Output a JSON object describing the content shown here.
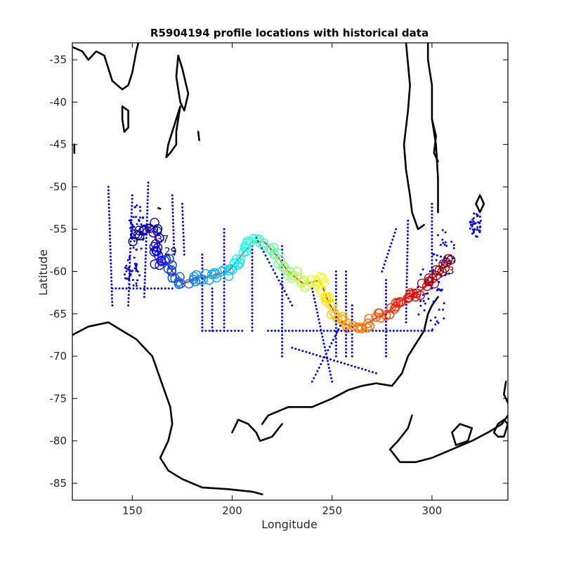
{
  "chart_data": {
    "type": "scatter",
    "title": "R5904194 profile locations with historical data",
    "xlabel": "Longitude",
    "ylabel": "Latitude",
    "xlim": [
      120,
      338
    ],
    "ylim": [
      -87,
      -33
    ],
    "xticks": [
      150,
      200,
      250,
      300
    ],
    "yticks": [
      -35,
      -40,
      -45,
      -50,
      -55,
      -60,
      -65,
      -70,
      -75,
      -80,
      -85
    ],
    "grid": false,
    "profile_labels": [
      "36",
      "37",
      "29",
      "3"
    ],
    "track": [
      [
        152,
        -56.5
      ],
      [
        154,
        -55.5
      ],
      [
        156,
        -55.0
      ],
      [
        158,
        -54.8
      ],
      [
        160,
        -54.6
      ],
      [
        162,
        -56.0
      ],
      [
        163,
        -58.5
      ],
      [
        164,
        -59.0
      ],
      [
        166,
        -58.5
      ],
      [
        170,
        -60.0
      ],
      [
        175,
        -61.5
      ],
      [
        182,
        -60.8
      ],
      [
        190,
        -60.5
      ],
      [
        198,
        -60.0
      ],
      [
        205,
        -58.0
      ],
      [
        210,
        -56.5
      ],
      [
        216,
        -56.5
      ],
      [
        222,
        -58.0
      ],
      [
        228,
        -60.0
      ],
      [
        236,
        -61.5
      ],
      [
        244,
        -61.0
      ],
      [
        248,
        -63.5
      ],
      [
        254,
        -66.0
      ],
      [
        260,
        -66.5
      ],
      [
        266,
        -66.3
      ],
      [
        272,
        -65.5
      ],
      [
        278,
        -64.8
      ],
      [
        284,
        -63.5
      ],
      [
        290,
        -62.8
      ],
      [
        296,
        -62.0
      ],
      [
        302,
        -60.5
      ],
      [
        306,
        -59.5
      ],
      [
        310,
        -58.8
      ]
    ],
    "historical_lines": [
      {
        "x": [
          138,
          140
        ],
        "y": [
          -50,
          -64
        ]
      },
      {
        "x": [
          150,
          148
        ],
        "y": [
          -51,
          -64
        ]
      },
      {
        "x": [
          158,
          156
        ],
        "y": [
          -49.5,
          -63
        ]
      },
      {
        "x": [
          170,
          171
        ],
        "y": [
          -51,
          -58
        ]
      },
      {
        "x": [
          175,
          176
        ],
        "y": [
          -52,
          -58
        ]
      },
      {
        "x": [
          185,
          185
        ],
        "y": [
          -58,
          -67
        ]
      },
      {
        "x": [
          190,
          190
        ],
        "y": [
          -62,
          -67
        ]
      },
      {
        "x": [
          196,
          196
        ],
        "y": [
          -55,
          -67
        ]
      },
      {
        "x": [
          210,
          210
        ],
        "y": [
          -57,
          -67
        ]
      },
      {
        "x": [
          225,
          225
        ],
        "y": [
          -57,
          -70
        ]
      },
      {
        "x": [
          252,
          252
        ],
        "y": [
          -60,
          -70
        ]
      },
      {
        "x": [
          257,
          257
        ],
        "y": [
          -60,
          -70
        ]
      },
      {
        "x": [
          260,
          260
        ],
        "y": [
          -64,
          -70
        ]
      },
      {
        "x": [
          277,
          277
        ],
        "y": [
          -61,
          -70
        ]
      },
      {
        "x": [
          288,
          287
        ],
        "y": [
          -54,
          -66
        ]
      },
      {
        "x": [
          300,
          300
        ],
        "y": [
          -52,
          -62
        ]
      },
      {
        "x": [
          212,
          230
        ],
        "y": [
          -56,
          -64
        ]
      },
      {
        "x": [
          240,
          250
        ],
        "y": [
          -62,
          -73
        ]
      },
      {
        "x": [
          255,
          240
        ],
        "y": [
          -66,
          -73
        ]
      },
      {
        "x": [
          140,
          170
        ],
        "y": [
          -62,
          -62
        ]
      },
      {
        "x": [
          185,
          205
        ],
        "y": [
          -67,
          -67
        ]
      },
      {
        "x": [
          218,
          300
        ],
        "y": [
          -67,
          -67
        ]
      },
      {
        "x": [
          230,
          272
        ],
        "y": [
          -69,
          -72
        ]
      },
      {
        "x": [
          275,
          282
        ],
        "y": [
          -60,
          -55
        ]
      }
    ],
    "historical_clusters": [
      {
        "x": 152,
        "y": -55,
        "rx": 4,
        "ry": 3
      },
      {
        "x": 306,
        "y": -59,
        "rx": 6,
        "ry": 4
      },
      {
        "x": 322,
        "y": -54.5,
        "rx": 3,
        "ry": 1.5
      },
      {
        "x": 300,
        "y": -63,
        "rx": 8,
        "ry": 4
      },
      {
        "x": 150,
        "y": -60,
        "rx": 4,
        "ry": 2
      }
    ],
    "coastlines": [
      [
        [
          120,
          -67.5
        ],
        [
          128,
          -66.5
        ],
        [
          138,
          -66
        ],
        [
          145,
          -67
        ],
        [
          152,
          -68
        ],
        [
          160,
          -70
        ],
        [
          163,
          -72
        ],
        [
          166,
          -74
        ],
        [
          169,
          -76
        ],
        [
          170,
          -78
        ],
        [
          168,
          -80
        ],
        [
          164,
          -82
        ],
        [
          168,
          -83.5
        ],
        [
          175,
          -84.5
        ],
        [
          185,
          -85.5
        ],
        [
          198,
          -85.7
        ],
        [
          210,
          -86
        ],
        [
          215,
          -86.3
        ]
      ],
      [
        [
          215,
          -78
        ],
        [
          218,
          -77
        ],
        [
          223,
          -76.5
        ],
        [
          228,
          -76
        ],
        [
          240,
          -76
        ],
        [
          250,
          -75
        ],
        [
          258,
          -74
        ],
        [
          265,
          -73.5
        ],
        [
          272,
          -73.2
        ],
        [
          280,
          -73.5
        ],
        [
          285,
          -72
        ],
        [
          288,
          -70
        ],
        [
          292,
          -68.5
        ],
        [
          296,
          -67
        ],
        [
          298,
          -65
        ],
        [
          300,
          -64
        ],
        [
          303,
          -63
        ]
      ],
      [
        [
          200,
          -79
        ],
        [
          203,
          -77.5
        ],
        [
          208,
          -78
        ],
        [
          212,
          -79
        ],
        [
          214,
          -80
        ],
        [
          220,
          -79.5
        ],
        [
          225,
          -78
        ]
      ],
      [
        [
          290,
          -77
        ],
        [
          288,
          -78.5
        ],
        [
          283,
          -80
        ],
        [
          279,
          -81
        ],
        [
          284,
          -82.5
        ],
        [
          292,
          -82.5
        ],
        [
          300,
          -82
        ],
        [
          310,
          -81
        ],
        [
          320,
          -80
        ],
        [
          328,
          -79
        ],
        [
          335,
          -78
        ],
        [
          338,
          -77
        ]
      ],
      [
        [
          310,
          -79
        ],
        [
          314,
          -78
        ],
        [
          320,
          -78.5
        ],
        [
          318,
          -80
        ],
        [
          312,
          -80.5
        ],
        [
          310,
          -79
        ]
      ],
      [
        [
          331,
          -79
        ],
        [
          333,
          -78
        ],
        [
          336,
          -77.5
        ],
        [
          338,
          -78
        ],
        [
          336,
          -79.5
        ],
        [
          333,
          -79.5
        ],
        [
          331,
          -79
        ]
      ],
      [
        [
          338,
          -75.5
        ],
        [
          336,
          -74.5
        ],
        [
          337,
          -73
        ]
      ],
      [
        [
          303,
          -53
        ],
        [
          303,
          -49
        ],
        [
          302,
          -45
        ],
        [
          300,
          -42
        ],
        [
          300,
          -38
        ],
        [
          298,
          -35
        ],
        [
          298,
          -33
        ]
      ],
      [
        [
          287,
          -33
        ],
        [
          289,
          -38
        ],
        [
          288,
          -41
        ],
        [
          286,
          -45
        ],
        [
          287,
          -48
        ],
        [
          289,
          -51
        ],
        [
          290,
          -53
        ],
        [
          293,
          -55
        ],
        [
          296,
          -54.5
        ]
      ],
      [
        [
          300,
          -42
        ],
        [
          302,
          -44
        ],
        [
          301,
          -46
        ],
        [
          303,
          -47
        ]
      ],
      [
        [
          322,
          -52
        ],
        [
          324,
          -51
        ],
        [
          326,
          -52
        ],
        [
          324,
          -53
        ],
        [
          322,
          -52
        ]
      ],
      [
        [
          173,
          -34.5
        ],
        [
          175,
          -36
        ],
        [
          177,
          -38
        ],
        [
          178,
          -39
        ],
        [
          176,
          -41
        ],
        [
          174,
          -40
        ],
        [
          172,
          -37
        ],
        [
          173,
          -34.5
        ]
      ],
      [
        [
          174,
          -40.5
        ],
        [
          173,
          -42
        ],
        [
          172,
          -43.5
        ],
        [
          172,
          -45
        ],
        [
          169,
          -46
        ],
        [
          167,
          -46.5
        ],
        [
          168,
          -45
        ],
        [
          170,
          -43.5
        ],
        [
          172,
          -42
        ],
        [
          174,
          -40.5
        ]
      ],
      [
        [
          120,
          -33.5
        ],
        [
          125,
          -34
        ],
        [
          128,
          -35
        ],
        [
          132,
          -34
        ],
        [
          136,
          -34.5
        ],
        [
          140,
          -37.5
        ],
        [
          145,
          -38.5
        ],
        [
          148,
          -38
        ],
        [
          150,
          -36.5
        ],
        [
          152,
          -34
        ],
        [
          153,
          -33
        ]
      ],
      [
        [
          145,
          -40.5
        ],
        [
          148,
          -41
        ],
        [
          148,
          -43
        ],
        [
          146,
          -43.5
        ],
        [
          145,
          -42
        ],
        [
          145,
          -40.5
        ]
      ],
      [
        [
          183,
          -43.5
        ],
        [
          183.5,
          -44.5
        ]
      ],
      [
        [
          163,
          -52.5
        ],
        [
          164,
          -52.6
        ]
      ],
      [
        [
          121,
          -45
        ],
        [
          121,
          -46
        ]
      ]
    ],
    "colors": {
      "track": "#ff0000",
      "historical": "#0000ff",
      "coast": "#000000",
      "colormap": [
        "#00008f",
        "#0000ff",
        "#0080ff",
        "#00ffff",
        "#80ff80",
        "#ffff00",
        "#ff8000",
        "#ff0000",
        "#800000"
      ]
    }
  }
}
